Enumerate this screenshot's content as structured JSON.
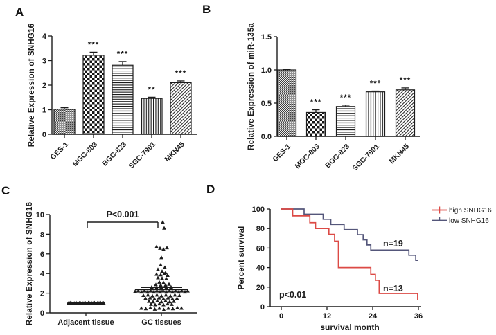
{
  "panels": {
    "a": {
      "letter": "A"
    },
    "b": {
      "letter": "B"
    },
    "c": {
      "letter": "C"
    },
    "d": {
      "letter": "D"
    }
  },
  "colors": {
    "black": "#1c1c1c",
    "red": "#dc4a45",
    "slate": "#54567a",
    "fill_dark": "#161616",
    "fill_gray": "#3d3d3d",
    "fill_light": "#ededed"
  },
  "chart_data": [
    {
      "panel": "A",
      "type": "bar",
      "ylabel": "Relative Expression of SNHG16",
      "categories": [
        "GES-1",
        "MGC-803",
        "BGC-823",
        "SGC-7901",
        "MKN45"
      ],
      "values": [
        1.02,
        3.22,
        2.81,
        1.46,
        2.1
      ],
      "errors": [
        0.06,
        0.12,
        0.15,
        0.05,
        0.07
      ],
      "sig": [
        "",
        "***",
        "***",
        "**",
        "***"
      ],
      "patterns": [
        "checkerFine",
        "checkerCoarse",
        "hLines",
        "vLines",
        "dLines"
      ],
      "ylim": [
        0,
        4
      ],
      "yticks": [
        0,
        1,
        2,
        3,
        4
      ],
      "ytick_labels": [
        "0",
        "1",
        "2",
        "3",
        "4"
      ]
    },
    {
      "panel": "B",
      "type": "bar",
      "ylabel": "Relative Expression of miR-135a",
      "categories": [
        "GES-1",
        "MGC-803",
        "BGC-823",
        "SGC-7901",
        "MKN45"
      ],
      "values": [
        1.0,
        0.36,
        0.45,
        0.67,
        0.7
      ],
      "errors": [
        0.012,
        0.04,
        0.02,
        0.012,
        0.03
      ],
      "sig": [
        "",
        "***",
        "***",
        "***",
        "***"
      ],
      "patterns": [
        "checkerFine",
        "checkerCoarse",
        "hLines",
        "vLines",
        "dLines"
      ],
      "ylim": [
        0,
        1.5
      ],
      "yticks": [
        0,
        0.5,
        1.0,
        1.5
      ],
      "ytick_labels": [
        "0.0",
        "0.5",
        "1.0",
        "1.5"
      ]
    },
    {
      "panel": "C",
      "type": "scatter",
      "ylabel": "Relative Expression of SNHG16",
      "p_label": "P<0.001",
      "ylim": [
        0,
        10
      ],
      "yticks": [
        0,
        2,
        4,
        6,
        8,
        10
      ],
      "ytick_labels": [
        "0",
        "2",
        "4",
        "6",
        "8",
        "10"
      ],
      "groups": [
        {
          "label": "Adjacent tissue",
          "mean": 0.97,
          "err": 0.05,
          "points": [
            [
              0.97,
              -25
            ],
            [
              1.0,
              -22.8
            ],
            [
              0.94,
              -20.6
            ],
            [
              0.99,
              -18.4
            ],
            [
              0.96,
              -16.2
            ],
            [
              1.0,
              -14
            ],
            [
              0.95,
              -11.8
            ],
            [
              0.98,
              -9.6
            ],
            [
              0.96,
              -7.4
            ],
            [
              1.0,
              -5.2
            ],
            [
              0.95,
              -3
            ],
            [
              0.98,
              -0.8
            ],
            [
              0.96,
              1.4
            ],
            [
              1.0,
              3.6
            ],
            [
              0.95,
              5.8
            ],
            [
              0.99,
              8
            ],
            [
              0.96,
              10.2
            ],
            [
              1.0,
              12.4
            ],
            [
              0.95,
              14.6
            ],
            [
              0.98,
              16.8
            ],
            [
              0.97,
              19
            ],
            [
              1.0,
              21.2
            ],
            [
              0.95,
              23.4
            ],
            [
              0.98,
              25.6
            ]
          ]
        },
        {
          "label": "GC tissues",
          "mean": 2.38,
          "err": 0.2,
          "points": [
            [
              9.2,
              2
            ],
            [
              8.6,
              4
            ],
            [
              6.7,
              -7
            ],
            [
              6.55,
              -2
            ],
            [
              6.45,
              3
            ],
            [
              6.6,
              8
            ],
            [
              5.6,
              0
            ],
            [
              4.85,
              -1
            ],
            [
              4.6,
              5
            ],
            [
              4.4,
              -5
            ],
            [
              4.2,
              1
            ],
            [
              4.05,
              6
            ],
            [
              3.9,
              -7
            ],
            [
              3.85,
              -1
            ],
            [
              3.95,
              4
            ],
            [
              3.8,
              9
            ],
            [
              3.55,
              -5
            ],
            [
              3.5,
              1
            ],
            [
              3.45,
              7
            ],
            [
              3.1,
              -3
            ],
            [
              3.05,
              3
            ],
            [
              2.85,
              -8
            ],
            [
              2.8,
              -1
            ],
            [
              2.8,
              6
            ],
            [
              2.9,
              11
            ],
            [
              2.6,
              -14
            ],
            [
              2.55,
              -7
            ],
            [
              2.6,
              0
            ],
            [
              2.55,
              7
            ],
            [
              2.6,
              14
            ],
            [
              2.15,
              -38
            ],
            [
              2.2,
              -33.5
            ],
            [
              2.1,
              -29
            ],
            [
              2.2,
              -24.5
            ],
            [
              2.1,
              -20
            ],
            [
              2.2,
              -15.5
            ],
            [
              2.1,
              -11
            ],
            [
              2.2,
              -6.5
            ],
            [
              2.1,
              -2
            ],
            [
              2.2,
              2.5
            ],
            [
              2.1,
              7
            ],
            [
              2.2,
              11.5
            ],
            [
              2.1,
              16
            ],
            [
              2.2,
              20.5
            ],
            [
              2.1,
              25
            ],
            [
              2.2,
              29.5
            ],
            [
              2.1,
              34
            ],
            [
              2.2,
              38
            ],
            [
              1.75,
              -26
            ],
            [
              1.8,
              -19.5
            ],
            [
              1.7,
              -13
            ],
            [
              1.8,
              -6.5
            ],
            [
              1.7,
              0
            ],
            [
              1.8,
              6.5
            ],
            [
              1.7,
              13
            ],
            [
              1.8,
              19.5
            ],
            [
              1.75,
              26
            ],
            [
              1.45,
              -23
            ],
            [
              1.5,
              -16.5
            ],
            [
              1.4,
              -10
            ],
            [
              1.5,
              -3.5
            ],
            [
              1.4,
              3
            ],
            [
              1.5,
              9.5
            ],
            [
              1.4,
              16
            ],
            [
              1.45,
              22.5
            ],
            [
              1.15,
              -18
            ],
            [
              1.1,
              -12
            ],
            [
              1.2,
              -6
            ],
            [
              1.1,
              0
            ],
            [
              1.2,
              6
            ],
            [
              1.1,
              12
            ],
            [
              1.15,
              18
            ],
            [
              0.85,
              -15
            ],
            [
              0.8,
              -9
            ],
            [
              0.9,
              -3
            ],
            [
              0.8,
              3
            ],
            [
              0.9,
              9
            ],
            [
              0.85,
              15
            ],
            [
              0.45,
              -29
            ],
            [
              0.4,
              -22.5
            ],
            [
              0.5,
              -16
            ],
            [
              0.35,
              -9.5
            ],
            [
              0.45,
              -3
            ],
            [
              0.3,
              3.5
            ],
            [
              0.45,
              10
            ],
            [
              0.4,
              16.5
            ],
            [
              0.5,
              23
            ],
            [
              0.45,
              29
            ]
          ]
        }
      ]
    },
    {
      "panel": "D",
      "type": "km",
      "ylabel": "Percent survival",
      "xlabel": "survival month",
      "p_label": "p<0.01",
      "xlim": [
        0,
        36
      ],
      "xticks": [
        0,
        12,
        24,
        36
      ],
      "xtick_labels": [
        "0",
        "12",
        "24",
        "36"
      ],
      "ylim": [
        0,
        100
      ],
      "yticks": [
        0,
        20,
        40,
        60,
        80,
        100
      ],
      "ytick_labels": [
        "0",
        "20",
        "40",
        "60",
        "80",
        "100"
      ],
      "legend_position": "top-right-outside",
      "series": [
        {
          "name": "high SNHG16",
          "color": "red",
          "n_label": "n=13",
          "steps": [
            [
              0,
              100
            ],
            [
              3,
              100
            ],
            [
              3,
              93
            ],
            [
              7.5,
              93
            ],
            [
              7.5,
              86
            ],
            [
              9,
              86
            ],
            [
              9,
              80
            ],
            [
              12.5,
              80
            ],
            [
              12.5,
              74
            ],
            [
              14,
              74
            ],
            [
              14,
              67
            ],
            [
              15,
              67
            ],
            [
              15,
              40
            ],
            [
              23.5,
              40
            ],
            [
              23.5,
              33
            ],
            [
              24.7,
              33
            ],
            [
              24.7,
              27
            ],
            [
              25.7,
              27
            ],
            [
              25.7,
              13.5
            ],
            [
              35.8,
              13.5
            ],
            [
              35.8,
              7
            ],
            [
              36,
              7
            ]
          ]
        },
        {
          "name": "low SNHG16",
          "color": "slate",
          "n_label": "n=19",
          "steps": [
            [
              0,
              100
            ],
            [
              6,
              100
            ],
            [
              6,
              94.7
            ],
            [
              11,
              94.7
            ],
            [
              11,
              89.5
            ],
            [
              13,
              89.5
            ],
            [
              13,
              84.2
            ],
            [
              16.5,
              84.2
            ],
            [
              16.5,
              78.9
            ],
            [
              20,
              78.9
            ],
            [
              20,
              73.7
            ],
            [
              21.5,
              73.7
            ],
            [
              21.5,
              68.4
            ],
            [
              22.5,
              68.4
            ],
            [
              22.5,
              63.2
            ],
            [
              23.5,
              63.2
            ],
            [
              23.5,
              57.9
            ],
            [
              33.5,
              57.9
            ],
            [
              33.5,
              52.6
            ],
            [
              35.3,
              52.6
            ],
            [
              35.3,
              47.4
            ],
            [
              36,
              47.4
            ]
          ]
        }
      ]
    }
  ]
}
